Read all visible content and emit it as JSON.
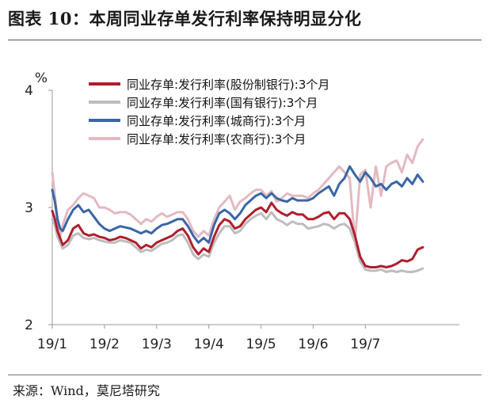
{
  "title": "图表 10：本周同业存单发行利率保持明显分化",
  "source": "来源：Wind，莫尼塔研究",
  "chart_data": {
    "type": "line",
    "ylabel": "%",
    "ylim": [
      2,
      4
    ],
    "yticks": [
      "2",
      "3",
      "4"
    ],
    "xlim": [
      0,
      7.8
    ],
    "xticks": [
      {
        "pos": 0,
        "label": "19/1"
      },
      {
        "pos": 1,
        "label": "19/2"
      },
      {
        "pos": 2,
        "label": "19/3"
      },
      {
        "pos": 3,
        "label": "19/4"
      },
      {
        "pos": 4,
        "label": "19/5"
      },
      {
        "pos": 5,
        "label": "19/6"
      },
      {
        "pos": 6,
        "label": "19/7"
      }
    ],
    "legend_position": "top-left",
    "series": [
      {
        "name": "同业存单:发行利率(股份制银行):3个月",
        "color": "#b01e2e",
        "x": [
          0,
          0.05,
          0.1,
          0.15,
          0.2,
          0.3,
          0.4,
          0.5,
          0.6,
          0.7,
          0.8,
          0.9,
          1.0,
          1.1,
          1.2,
          1.3,
          1.4,
          1.5,
          1.6,
          1.7,
          1.8,
          1.9,
          2.0,
          2.1,
          2.2,
          2.3,
          2.4,
          2.5,
          2.6,
          2.7,
          2.8,
          2.9,
          3.0,
          3.1,
          3.2,
          3.3,
          3.4,
          3.5,
          3.6,
          3.7,
          3.8,
          3.9,
          4.0,
          4.1,
          4.2,
          4.3,
          4.4,
          4.5,
          4.6,
          4.7,
          4.8,
          4.9,
          5.0,
          5.1,
          5.2,
          5.3,
          5.4,
          5.5,
          5.6,
          5.7,
          5.8,
          5.9,
          6.0,
          6.1,
          6.2,
          6.3,
          6.4,
          6.5,
          6.6,
          6.7,
          6.8,
          6.9,
          7.0,
          7.1
        ],
        "values": [
          2.97,
          2.9,
          2.8,
          2.74,
          2.68,
          2.72,
          2.82,
          2.85,
          2.78,
          2.76,
          2.77,
          2.75,
          2.74,
          2.72,
          2.73,
          2.75,
          2.74,
          2.72,
          2.7,
          2.65,
          2.68,
          2.66,
          2.7,
          2.72,
          2.74,
          2.76,
          2.8,
          2.82,
          2.76,
          2.66,
          2.6,
          2.65,
          2.62,
          2.75,
          2.85,
          2.9,
          2.88,
          2.82,
          2.84,
          2.9,
          2.94,
          2.98,
          3.0,
          2.96,
          3.04,
          2.98,
          2.95,
          2.93,
          2.96,
          2.94,
          2.94,
          2.9,
          2.9,
          2.92,
          2.95,
          2.96,
          2.9,
          2.95,
          2.95,
          2.9,
          2.76,
          2.58,
          2.5,
          2.49,
          2.49,
          2.5,
          2.49,
          2.5,
          2.52,
          2.55,
          2.54,
          2.56,
          2.64,
          2.66
        ]
      },
      {
        "name": "同业存单:发行利率(国有银行):3个月",
        "color": "#bdbdbd",
        "x": [
          0,
          0.05,
          0.1,
          0.15,
          0.2,
          0.3,
          0.4,
          0.5,
          0.6,
          0.7,
          0.8,
          0.9,
          1.0,
          1.1,
          1.2,
          1.3,
          1.4,
          1.5,
          1.6,
          1.7,
          1.8,
          1.9,
          2.0,
          2.1,
          2.2,
          2.3,
          2.4,
          2.5,
          2.6,
          2.7,
          2.8,
          2.9,
          3.0,
          3.1,
          3.2,
          3.3,
          3.4,
          3.5,
          3.6,
          3.7,
          3.8,
          3.9,
          4.0,
          4.1,
          4.2,
          4.3,
          4.4,
          4.5,
          4.6,
          4.7,
          4.8,
          4.9,
          5.0,
          5.1,
          5.2,
          5.3,
          5.4,
          5.5,
          5.6,
          5.7,
          5.8,
          5.9,
          6.0,
          6.1,
          6.2,
          6.3,
          6.4,
          6.5,
          6.6,
          6.7,
          6.8,
          6.9,
          7.0,
          7.1
        ],
        "values": [
          2.9,
          2.85,
          2.75,
          2.7,
          2.65,
          2.68,
          2.76,
          2.78,
          2.74,
          2.73,
          2.74,
          2.72,
          2.71,
          2.7,
          2.7,
          2.72,
          2.71,
          2.7,
          2.66,
          2.62,
          2.64,
          2.63,
          2.66,
          2.69,
          2.7,
          2.72,
          2.76,
          2.77,
          2.7,
          2.6,
          2.56,
          2.6,
          2.58,
          2.7,
          2.78,
          2.84,
          2.84,
          2.78,
          2.8,
          2.86,
          2.9,
          2.93,
          2.95,
          2.9,
          2.96,
          2.9,
          2.88,
          2.85,
          2.88,
          2.86,
          2.86,
          2.82,
          2.83,
          2.84,
          2.86,
          2.85,
          2.82,
          2.85,
          2.86,
          2.82,
          2.7,
          2.54,
          2.47,
          2.46,
          2.46,
          2.47,
          2.45,
          2.46,
          2.45,
          2.46,
          2.45,
          2.45,
          2.46,
          2.48
        ]
      },
      {
        "name": "同业存单:发行利率(城商行):3个月",
        "color": "#3a66a5",
        "x": [
          0,
          0.05,
          0.1,
          0.15,
          0.2,
          0.3,
          0.4,
          0.5,
          0.6,
          0.7,
          0.8,
          0.9,
          1.0,
          1.1,
          1.2,
          1.3,
          1.4,
          1.5,
          1.6,
          1.7,
          1.8,
          1.9,
          2.0,
          2.1,
          2.2,
          2.3,
          2.4,
          2.5,
          2.6,
          2.7,
          2.8,
          2.9,
          3.0,
          3.1,
          3.2,
          3.3,
          3.4,
          3.5,
          3.6,
          3.7,
          3.8,
          3.9,
          4.0,
          4.1,
          4.2,
          4.3,
          4.4,
          4.5,
          4.6,
          4.7,
          4.8,
          4.9,
          5.0,
          5.1,
          5.2,
          5.3,
          5.4,
          5.5,
          5.6,
          5.7,
          5.8,
          5.9,
          6.0,
          6.1,
          6.2,
          6.3,
          6.4,
          6.5,
          6.6,
          6.7,
          6.8,
          6.9,
          7.0,
          7.1
        ],
        "values": [
          3.15,
          3.05,
          2.9,
          2.82,
          2.8,
          2.9,
          2.98,
          3.02,
          2.96,
          2.98,
          2.92,
          2.86,
          2.82,
          2.8,
          2.82,
          2.84,
          2.83,
          2.82,
          2.8,
          2.78,
          2.8,
          2.78,
          2.82,
          2.85,
          2.86,
          2.88,
          2.9,
          2.9,
          2.84,
          2.76,
          2.7,
          2.74,
          2.7,
          2.85,
          2.95,
          2.98,
          2.95,
          2.9,
          2.95,
          3.02,
          3.06,
          3.1,
          3.12,
          3.08,
          3.12,
          3.08,
          3.06,
          3.05,
          3.08,
          3.06,
          3.06,
          3.06,
          3.08,
          3.12,
          3.15,
          3.18,
          3.1,
          3.2,
          3.25,
          3.35,
          3.28,
          3.22,
          3.3,
          3.25,
          3.18,
          3.2,
          3.15,
          3.2,
          3.22,
          3.18,
          3.25,
          3.2,
          3.28,
          3.22
        ]
      },
      {
        "name": "同业存单:发行利率(农商行):3个月",
        "color": "#e3b9c2",
        "x": [
          0,
          0.05,
          0.1,
          0.15,
          0.2,
          0.3,
          0.4,
          0.5,
          0.6,
          0.7,
          0.8,
          0.9,
          1.0,
          1.1,
          1.2,
          1.3,
          1.4,
          1.5,
          1.6,
          1.7,
          1.8,
          1.9,
          2.0,
          2.1,
          2.2,
          2.3,
          2.4,
          2.5,
          2.6,
          2.7,
          2.8,
          2.9,
          3.0,
          3.1,
          3.2,
          3.3,
          3.4,
          3.5,
          3.6,
          3.7,
          3.8,
          3.9,
          4.0,
          4.1,
          4.2,
          4.3,
          4.4,
          4.5,
          4.6,
          4.7,
          4.8,
          4.9,
          5.0,
          5.1,
          5.2,
          5.3,
          5.4,
          5.5,
          5.6,
          5.7,
          5.8,
          5.9,
          6.0,
          6.1,
          6.2,
          6.3,
          6.4,
          6.5,
          6.6,
          6.7,
          6.8,
          6.9,
          7.0,
          7.1
        ],
        "values": [
          3.3,
          3.1,
          2.9,
          2.75,
          2.85,
          2.98,
          3.02,
          3.08,
          3.12,
          3.1,
          3.08,
          3.0,
          3.0,
          2.98,
          2.95,
          2.96,
          2.96,
          2.94,
          2.9,
          2.86,
          2.9,
          2.88,
          2.92,
          2.95,
          2.92,
          2.94,
          2.96,
          2.96,
          2.9,
          2.8,
          2.75,
          2.8,
          2.76,
          2.9,
          3.0,
          3.05,
          3.1,
          2.98,
          3.05,
          3.08,
          3.12,
          3.15,
          3.15,
          3.1,
          3.14,
          3.05,
          3.08,
          3.12,
          3.1,
          3.1,
          3.1,
          3.08,
          3.12,
          3.15,
          3.2,
          3.25,
          3.3,
          3.35,
          3.3,
          3.25,
          2.7,
          3.28,
          3.32,
          3.0,
          3.35,
          3.1,
          3.35,
          3.38,
          3.4,
          3.3,
          3.45,
          3.38,
          3.52,
          3.58
        ]
      }
    ]
  }
}
